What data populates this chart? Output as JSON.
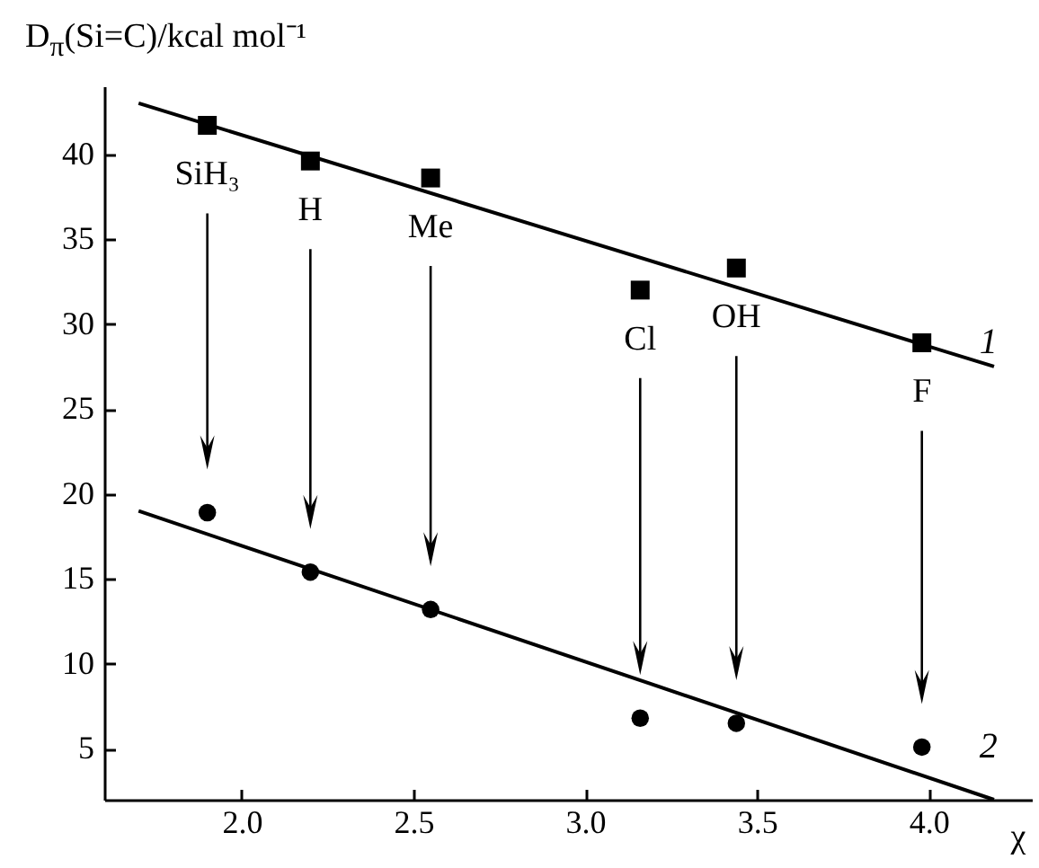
{
  "chart_data": {
    "type": "scatter",
    "ylabel": "D$_{π}$(Si=C)/kcal mol⁻¹",
    "xlabel": "χ",
    "xlim": [
      1.6,
      4.3
    ],
    "xticks": [
      {
        "value": 2,
        "label": "2.0"
      },
      {
        "value": 2.5,
        "label": "2.5"
      },
      {
        "value": 3,
        "label": "3.0"
      },
      {
        "value": 3.5,
        "label": "3.5"
      },
      {
        "value": 4,
        "label": "4.0"
      }
    ],
    "ylim": [
      2,
      44
    ],
    "yticks": [
      5,
      10,
      15,
      20,
      25,
      30,
      35,
      40
    ],
    "grid": false,
    "series": [
      {
        "name": "1",
        "marker": "square",
        "color": "#000000",
        "x": [
          1.9,
          2.2,
          2.55,
          3.16,
          3.44,
          3.98
        ],
        "values": [
          41.7,
          39.6,
          38.6,
          32.0,
          33.3,
          28.9
        ]
      },
      {
        "name": "2",
        "marker": "circle",
        "color": "#000000",
        "x": [
          1.9,
          2.2,
          2.55,
          3.16,
          3.44,
          3.98
        ],
        "values": [
          18.9,
          15.4,
          13.2,
          6.8,
          6.5,
          5.1
        ]
      },
      {
        "type": "line",
        "color": "#000000",
        "line_style": "solid",
        "x": [
          1.7,
          4.19
        ],
        "values": [
          43.0,
          27.5
        ]
      },
      {
        "type": "line",
        "color": "#000000",
        "line_style": "solid",
        "x": [
          1.7,
          4.19
        ],
        "values": [
          19.0,
          2.0
        ]
      }
    ],
    "annotations": [
      {
        "text": "SiH₃",
        "x": 1.9,
        "y": 41.7
      },
      {
        "text": "H",
        "x": 2.2,
        "y": 39.6
      },
      {
        "text": "Me",
        "x": 2.55,
        "y": 38.6
      },
      {
        "text": "Cl",
        "x": 3.16,
        "y": 32.0
      },
      {
        "text": "OH",
        "x": 3.44,
        "y": 33.3
      },
      {
        "text": "F",
        "x": 3.98,
        "y": 28.9
      }
    ]
  }
}
